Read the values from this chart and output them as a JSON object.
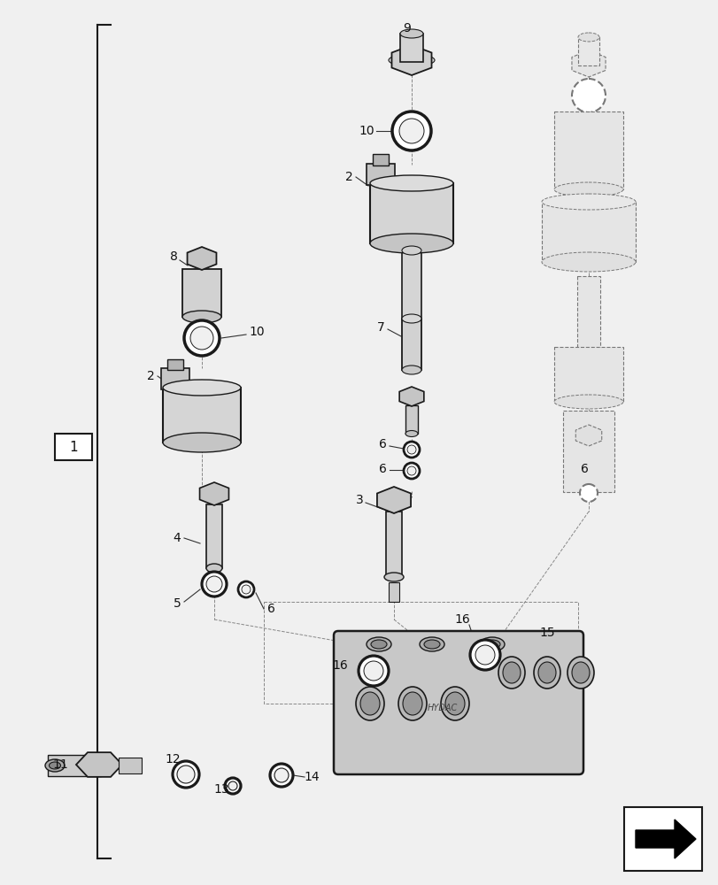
{
  "bg_color": "#f0f0f0",
  "line_color": "#1a1a1a",
  "dashed_color": "#777777",
  "label_fs": 10
}
